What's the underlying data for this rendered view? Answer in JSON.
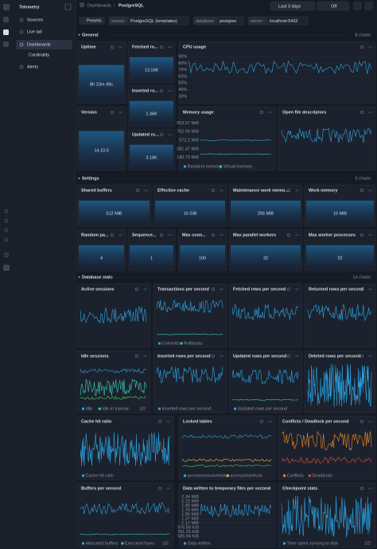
{
  "sidebar": {
    "brand": "Telemetry",
    "items": [
      "Sources",
      "Live tail",
      "Dashboards",
      "Cardinality",
      "Alerts"
    ]
  },
  "topbar": {
    "breadcrumb": [
      "Dashboards",
      "PostgreSQL"
    ],
    "time_range": "Last 3 days",
    "refresh": "Off"
  },
  "presets": {
    "label": "Presets",
    "filters": [
      {
        "key": "source",
        "value": "PostgreSQL (templates)"
      },
      {
        "key": "database",
        "value": "postgres"
      },
      {
        "key": "server",
        "value": "localhost:5432"
      }
    ]
  },
  "sections": [
    {
      "title": "General",
      "count": "8 charts",
      "panels": [
        {
          "title": "Uptime",
          "value": "8h 23m 49s"
        },
        {
          "title": "Fetched ro...",
          "value": "13.16K"
        },
        {
          "title": "Inserted ro...",
          "value": "1.36K"
        },
        {
          "title": "Updated ro...",
          "value": "3.16K"
        },
        {
          "title": "Version",
          "value": "14.10.0"
        },
        {
          "title": "CPU usage",
          "y_labels": [
            "90%",
            "80%",
            "70%",
            "60%",
            "50%",
            "40%",
            "30%"
          ]
        },
        {
          "title": "Memory usage",
          "y_labels": [
            "953.67 MiB",
            "762.94 MiB",
            "572.2 MiB",
            "381.47 MiB",
            "190.73 MiB"
          ],
          "legend": [
            "Resident memory",
            "Virtual memory"
          ]
        },
        {
          "title": "Open file descriptors"
        }
      ]
    },
    {
      "title": "Settings",
      "count": "9 charts",
      "panels": [
        {
          "title": "Shared buffers",
          "value": "512 MiB"
        },
        {
          "title": "Effective cache",
          "value": "16 GiB"
        },
        {
          "title": "Maintenance work memo...",
          "value": "256 MiB"
        },
        {
          "title": "Work memory",
          "value": "16 MiB"
        },
        {
          "title": "Random pa...",
          "value": "4"
        },
        {
          "title": "Sequence...",
          "value": "1"
        },
        {
          "title": "Max conn...",
          "value": "100"
        },
        {
          "title": "Max parallel workers",
          "value": "32"
        },
        {
          "title": "Max worker processes",
          "value": "32"
        }
      ]
    },
    {
      "title": "Database stats",
      "count": "14 charts",
      "panels": [
        {
          "title": "Active sessions"
        },
        {
          "title": "Transactions per second",
          "legend": [
            "Commits",
            "Rollbacks"
          ]
        },
        {
          "title": "Fetched rows per second"
        },
        {
          "title": "Returned rows per second"
        },
        {
          "title": "Idle sessions",
          "legend": [
            "Idle",
            "Idle in transac",
            "1/2"
          ]
        },
        {
          "title": "Inserted rows per second",
          "legend": [
            "Inserted rows per second"
          ]
        },
        {
          "title": "Updated rows per second",
          "legend": [
            "Updated rows per second"
          ]
        },
        {
          "title": "Deleted rows per second"
        },
        {
          "title": "Cache hit ratio",
          "legend": [
            "Cache hit ratio"
          ]
        },
        {
          "title": "Locked tables",
          "legend": [
            "accessexclusivelock",
            "accesssharelock"
          ]
        },
        {
          "title": "Conflicts / Deadlock per second",
          "legend": [
            "Conflicts",
            "Deadlocks"
          ]
        },
        {
          "title": "Buffers per second",
          "legend": [
            "Allocated buffers",
            "Executed fsync",
            "1/2"
          ]
        },
        {
          "title": "Data written to temporary files per second",
          "y_labels": [
            "2.34 MiB",
            "2.15 MiB",
            "1.95 MiB",
            "1.76 MiB",
            "1.56 MiB",
            "1.37 MiB",
            "1.17 MiB",
            "976.56 KiB",
            "781.25 KiB",
            "585.94 KiB"
          ],
          "legend": [
            "Data written"
          ]
        },
        {
          "title": "Checkpoint stats",
          "legend": [
            "Time spent syncing to disk",
            "1/2"
          ]
        }
      ]
    }
  ]
}
